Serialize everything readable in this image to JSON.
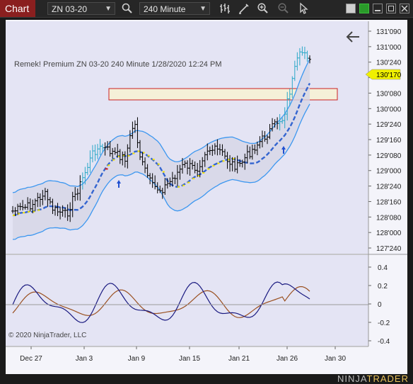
{
  "toolbar": {
    "tab_label": "Chart",
    "instrument": "ZN 03-20",
    "interval": "240 Minute"
  },
  "chart": {
    "title_line": "Remek!  Premium  ZN 03-20  240 Minute  1/28/2020 12:24 PM",
    "current_price": "130'170",
    "copyright": "© 2020 NinjaTrader, LLC",
    "brand_a": "NINJA",
    "brand_b": "TRADER",
    "price_ticks": [
      "131'090",
      "131'000",
      "130'240",
      "130'170",
      "130'080",
      "130'000",
      "129'240",
      "129'160",
      "129'080",
      "129'000",
      "128'240",
      "128'160",
      "128'080",
      "128'000",
      "127'240"
    ],
    "osc_ticks": [
      "0.4",
      "0.2",
      "0",
      "-0.2",
      "-0.4"
    ],
    "date_ticks": [
      "Dec 27",
      "Jan 3",
      "Jan 9",
      "Jan 15",
      "Jan 21",
      "Jan 26",
      "Jan 30"
    ],
    "colors": {
      "background": "#e4e4f4",
      "candle": "#000000",
      "band": "#3c97f0",
      "ma_line": "#3465d0",
      "osc_fast": "#1a1a80",
      "osc_slow": "#9a5020",
      "zone_border": "#cc2020",
      "zone_fill": "#f5f0d8",
      "price_badge": "#f0f000"
    }
  }
}
